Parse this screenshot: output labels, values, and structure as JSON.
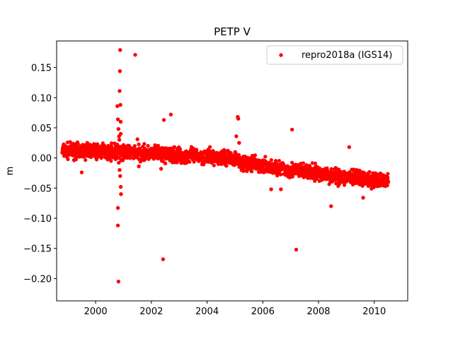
{
  "chart_data": {
    "type": "scatter",
    "title": "PETP V",
    "xlabel": "",
    "ylabel": "m",
    "xlim": [
      1998.6,
      2011.2
    ],
    "ylim": [
      -0.237,
      0.194
    ],
    "xticks": [
      2000,
      2002,
      2004,
      2006,
      2008,
      2010
    ],
    "xtick_labels": [
      "2000",
      "2002",
      "2004",
      "2006",
      "2008",
      "2010"
    ],
    "yticks": [
      0.15,
      0.1,
      0.05,
      0.0,
      -0.05,
      -0.1,
      -0.15,
      -0.2
    ],
    "ytick_labels": [
      "0.15",
      "0.10",
      "0.05",
      "0.00",
      "−0.05",
      "−0.10",
      "−0.15",
      "−0.20"
    ],
    "grid": false,
    "legend_position": "top-right",
    "series": [
      {
        "name": "repro2018a (IGS14)",
        "color": "#ff0000",
        "marker": "circle",
        "trend": [
          [
            1998.8,
            0.012
          ],
          [
            2001.0,
            0.01
          ],
          [
            2003.0,
            0.004
          ],
          [
            2005.0,
            0.0
          ],
          [
            2005.3,
            -0.008
          ],
          [
            2007.0,
            -0.02
          ],
          [
            2009.0,
            -0.032
          ],
          [
            2010.5,
            -0.038
          ]
        ],
        "points": [
          [
            1998.9,
            0.02
          ],
          [
            1999.0,
            0.005
          ],
          [
            1999.2,
            0.012
          ],
          [
            1999.4,
            0.002
          ],
          [
            1999.5,
            -0.024
          ],
          [
            1999.6,
            0.016
          ],
          [
            1999.7,
            0.025
          ],
          [
            1999.8,
            0.022
          ],
          [
            1999.9,
            0.01
          ],
          [
            2000.0,
            0.018
          ],
          [
            2000.1,
            0.012
          ],
          [
            2000.2,
            0.003
          ],
          [
            2000.3,
            0.014
          ],
          [
            2000.4,
            0.006
          ],
          [
            2000.5,
            0.019
          ],
          [
            2000.6,
            0.009
          ],
          [
            2000.78,
            0.086
          ],
          [
            2000.8,
            0.064
          ],
          [
            2000.82,
            0.048
          ],
          [
            2000.84,
            0.036
          ],
          [
            2000.86,
            0.111
          ],
          [
            2000.87,
            0.144
          ],
          [
            2000.88,
            0.179
          ],
          [
            2000.89,
            0.088
          ],
          [
            2000.9,
            0.06
          ],
          [
            2000.85,
            0.03
          ],
          [
            2000.83,
            -0.008
          ],
          [
            2000.86,
            -0.02
          ],
          [
            2000.88,
            -0.03
          ],
          [
            2000.9,
            -0.048
          ],
          [
            2000.91,
            -0.06
          ],
          [
            2000.8,
            -0.083
          ],
          [
            2000.8,
            -0.112
          ],
          [
            2000.82,
            -0.205
          ],
          [
            2000.9,
            0.04
          ],
          [
            2000.92,
            -0.004
          ],
          [
            2001.0,
            0.008
          ],
          [
            2001.2,
            0.014
          ],
          [
            2001.4,
            0.004
          ],
          [
            2001.42,
            0.171
          ],
          [
            2001.5,
            0.031
          ],
          [
            2001.55,
            -0.014
          ],
          [
            2001.7,
            0.012
          ],
          [
            2001.9,
            0.006
          ],
          [
            2002.0,
            0.01
          ],
          [
            2002.2,
            0.003
          ],
          [
            2002.35,
            -0.018
          ],
          [
            2002.42,
            -0.168
          ],
          [
            2002.45,
            0.063
          ],
          [
            2002.5,
            -0.009
          ],
          [
            2002.7,
            0.072
          ],
          [
            2002.8,
            0.005
          ],
          [
            2003.0,
            0.0
          ],
          [
            2003.3,
            0.008
          ],
          [
            2003.5,
            -0.002
          ],
          [
            2003.8,
            0.004
          ],
          [
            2004.0,
            -0.006
          ],
          [
            2004.3,
            0.002
          ],
          [
            2004.6,
            -0.008
          ],
          [
            2004.8,
            0.004
          ],
          [
            2005.0,
            0.0
          ],
          [
            2005.05,
            0.036
          ],
          [
            2005.1,
            0.068
          ],
          [
            2005.12,
            0.065
          ],
          [
            2005.15,
            0.025
          ],
          [
            2005.2,
            -0.002
          ],
          [
            2005.3,
            -0.012
          ],
          [
            2005.5,
            -0.006
          ],
          [
            2005.8,
            -0.014
          ],
          [
            2006.0,
            -0.01
          ],
          [
            2006.2,
            -0.018
          ],
          [
            2006.3,
            -0.052
          ],
          [
            2006.5,
            -0.022
          ],
          [
            2006.65,
            -0.052
          ],
          [
            2006.8,
            -0.016
          ],
          [
            2007.0,
            -0.02
          ],
          [
            2007.05,
            0.047
          ],
          [
            2007.2,
            -0.152
          ],
          [
            2007.3,
            -0.024
          ],
          [
            2007.6,
            -0.018
          ],
          [
            2007.9,
            -0.026
          ],
          [
            2008.0,
            -0.028
          ],
          [
            2008.2,
            -0.022
          ],
          [
            2008.4,
            -0.03
          ],
          [
            2008.45,
            -0.08
          ],
          [
            2008.7,
            -0.032
          ],
          [
            2008.9,
            -0.04
          ],
          [
            2009.0,
            -0.03
          ],
          [
            2009.1,
            0.018
          ],
          [
            2009.2,
            -0.038
          ],
          [
            2009.4,
            -0.034
          ],
          [
            2009.5,
            -0.044
          ],
          [
            2009.6,
            -0.066
          ],
          [
            2009.7,
            -0.032
          ],
          [
            2009.9,
            -0.04
          ],
          [
            2010.0,
            -0.036
          ],
          [
            2010.2,
            -0.044
          ],
          [
            2010.3,
            -0.03
          ],
          [
            2010.5,
            -0.04
          ]
        ]
      }
    ]
  }
}
